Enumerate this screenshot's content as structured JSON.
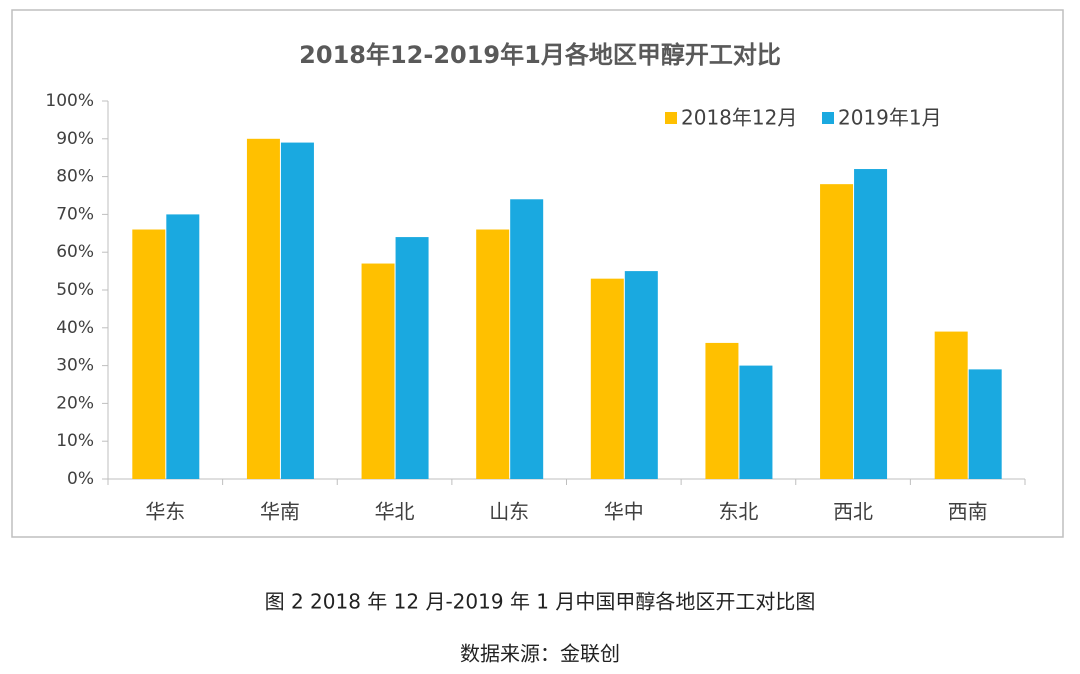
{
  "chart_data": {
    "type": "bar",
    "title": "2018年12-2019年1月各地区甲醇开工对比",
    "categories": [
      "华东",
      "华南",
      "华北",
      "山东",
      "华中",
      "东北",
      "西北",
      "西南"
    ],
    "series": [
      {
        "name": "2018年12月",
        "color": "#ffc000",
        "values": [
          66,
          90,
          57,
          66,
          53,
          36,
          78,
          39
        ]
      },
      {
        "name": "2019年1月",
        "color": "#1aa9e0",
        "values": [
          70,
          89,
          64,
          74,
          55,
          30,
          82,
          29
        ]
      }
    ],
    "ylim": [
      0,
      100
    ],
    "yticks": [
      {
        "value": 0,
        "label": "0%"
      },
      {
        "value": 10,
        "label": "10%"
      },
      {
        "value": 20,
        "label": "20%"
      },
      {
        "value": 30,
        "label": "30%"
      },
      {
        "value": 40,
        "label": "40%"
      },
      {
        "value": 50,
        "label": "50%"
      },
      {
        "value": 60,
        "label": "60%"
      },
      {
        "value": 70,
        "label": "70%"
      },
      {
        "value": 80,
        "label": "80%"
      },
      {
        "value": 90,
        "label": "90%"
      },
      {
        "value": 100,
        "label": "100%"
      }
    ],
    "legend": "top-right",
    "caption": "图 2 2018 年 12 月-2019 年 1 月中国甲醇各地区开工对比图",
    "source": "数据来源：金联创"
  }
}
